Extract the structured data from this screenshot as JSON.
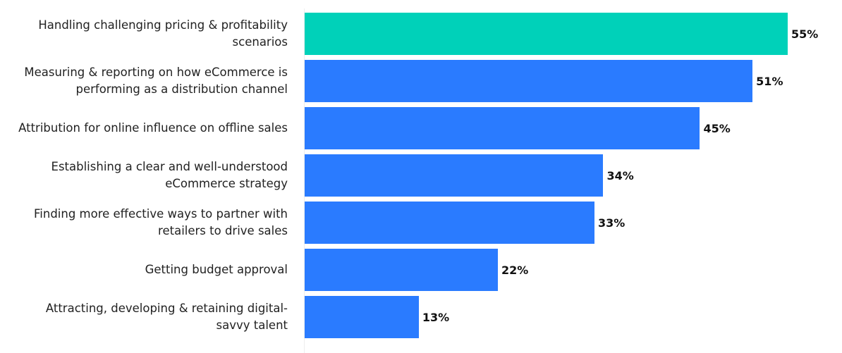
{
  "chart_data": {
    "type": "bar",
    "orientation": "horizontal",
    "categories": [
      "Handling challenging pricing & profitability scenarios",
      "Measuring & reporting on how eCommerce is performing as a distribution channel",
      "Attribution for online influence on offline sales",
      "Establishing a clear and well-understood eCommerce strategy",
      "Finding more effective ways to partner with retailers to drive sales",
      "Getting budget approval",
      "Attracting, developing & retaining digital-savvy talent"
    ],
    "values": [
      55,
      51,
      45,
      34,
      33,
      22,
      13
    ],
    "value_labels": [
      "55%",
      "51%",
      "45%",
      "34%",
      "33%",
      "22%",
      "13%"
    ],
    "colors": [
      "#00d1b9",
      "#2a7bff",
      "#2a7bff",
      "#2a7bff",
      "#2a7bff",
      "#2a7bff",
      "#2a7bff"
    ]
  }
}
